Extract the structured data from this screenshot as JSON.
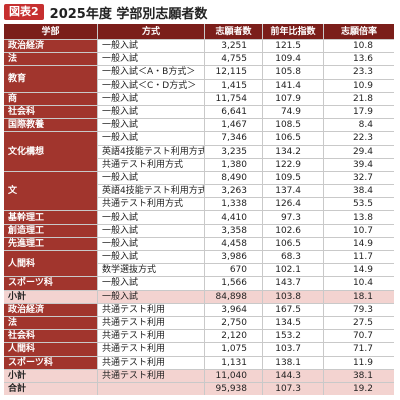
{
  "title": {
    "badge": "図表2",
    "text": "2025年度 学部別志願者数"
  },
  "colors": {
    "header": "#7b1e1a",
    "faculty": "#a1352d",
    "subtotal": "#f3d3d0",
    "badge": "#c62f2f"
  },
  "columns": {
    "faculty": "学部",
    "method": "方式",
    "applicants": "志願者数",
    "index": "前年比指数",
    "ratio": "志願倍率"
  },
  "sections": [
    {
      "groups": [
        {
          "faculty": "政治経済",
          "rows": [
            {
              "method": "一般入試",
              "applicants": "3,251",
              "index": "121.5",
              "ratio": "10.8"
            }
          ]
        },
        {
          "faculty": "法",
          "rows": [
            {
              "method": "一般入試",
              "applicants": "4,755",
              "index": "109.4",
              "ratio": "13.6"
            }
          ]
        },
        {
          "faculty": "教育",
          "rows": [
            {
              "method": "一般入試＜A・B方式＞",
              "applicants": "12,115",
              "index": "105.8",
              "ratio": "23.3"
            },
            {
              "method": "一般入試＜C・D方式＞",
              "applicants": "1,415",
              "index": "141.4",
              "ratio": "10.9"
            }
          ]
        },
        {
          "faculty": "商",
          "rows": [
            {
              "method": "一般入試",
              "applicants": "11,754",
              "index": "107.9",
              "ratio": "21.8"
            }
          ]
        },
        {
          "faculty": "社会科",
          "rows": [
            {
              "method": "一般入試",
              "applicants": "6,641",
              "index": "74.9",
              "ratio": "17.9"
            }
          ]
        },
        {
          "faculty": "国際教養",
          "rows": [
            {
              "method": "一般入試",
              "applicants": "1,467",
              "index": "108.5",
              "ratio": "8.4"
            }
          ]
        },
        {
          "faculty": "文化構想",
          "rows": [
            {
              "method": "一般入試",
              "applicants": "7,346",
              "index": "106.5",
              "ratio": "22.3"
            },
            {
              "method": "英語4技能テスト利用方式",
              "applicants": "3,235",
              "index": "134.2",
              "ratio": "29.4"
            },
            {
              "method": "共通テスト利用方式",
              "applicants": "1,380",
              "index": "122.9",
              "ratio": "39.4"
            }
          ]
        },
        {
          "faculty": "文",
          "rows": [
            {
              "method": "一般入試",
              "applicants": "8,490",
              "index": "109.5",
              "ratio": "32.7"
            },
            {
              "method": "英語4技能テスト利用方式",
              "applicants": "3,263",
              "index": "137.4",
              "ratio": "38.4"
            },
            {
              "method": "共通テスト利用方式",
              "applicants": "1,338",
              "index": "126.4",
              "ratio": "53.5"
            }
          ]
        },
        {
          "faculty": "基幹理工",
          "rows": [
            {
              "method": "一般入試",
              "applicants": "4,410",
              "index": "97.3",
              "ratio": "13.8"
            }
          ]
        },
        {
          "faculty": "創造理工",
          "rows": [
            {
              "method": "一般入試",
              "applicants": "3,358",
              "index": "102.6",
              "ratio": "10.7"
            }
          ]
        },
        {
          "faculty": "先進理工",
          "rows": [
            {
              "method": "一般入試",
              "applicants": "4,458",
              "index": "106.5",
              "ratio": "14.9"
            }
          ]
        },
        {
          "faculty": "人間科",
          "rows": [
            {
              "method": "一般入試",
              "applicants": "3,986",
              "index": "68.3",
              "ratio": "11.7"
            },
            {
              "method": "数学選抜方式",
              "applicants": "670",
              "index": "102.1",
              "ratio": "14.9"
            }
          ]
        },
        {
          "faculty": "スポーツ科",
          "rows": [
            {
              "method": "一般入試",
              "applicants": "1,566",
              "index": "143.7",
              "ratio": "10.4"
            }
          ]
        }
      ],
      "subtotal": {
        "faculty": "小計",
        "method": "一般入試",
        "applicants": "84,898",
        "index": "103.8",
        "ratio": "18.1"
      }
    },
    {
      "groups": [
        {
          "faculty": "政治経済",
          "rows": [
            {
              "method": "共通テスト利用",
              "applicants": "3,964",
              "index": "167.5",
              "ratio": "79.3"
            }
          ]
        },
        {
          "faculty": "法",
          "rows": [
            {
              "method": "共通テスト利用",
              "applicants": "2,750",
              "index": "134.5",
              "ratio": "27.5"
            }
          ]
        },
        {
          "faculty": "社会科",
          "rows": [
            {
              "method": "共通テスト利用",
              "applicants": "2,120",
              "index": "153.2",
              "ratio": "70.7"
            }
          ]
        },
        {
          "faculty": "人間科",
          "rows": [
            {
              "method": "共通テスト利用",
              "applicants": "1,075",
              "index": "103.7",
              "ratio": "71.7"
            }
          ]
        },
        {
          "faculty": "スポーツ科",
          "rows": [
            {
              "method": "共通テスト利用",
              "applicants": "1,131",
              "index": "138.1",
              "ratio": "11.9"
            }
          ]
        }
      ],
      "subtotal": {
        "faculty": "小計",
        "method": "共通テスト利用",
        "applicants": "11,040",
        "index": "144.3",
        "ratio": "38.1"
      }
    }
  ],
  "total": {
    "faculty": "合計",
    "applicants": "95,938",
    "index": "107.3",
    "ratio": "19.2"
  }
}
